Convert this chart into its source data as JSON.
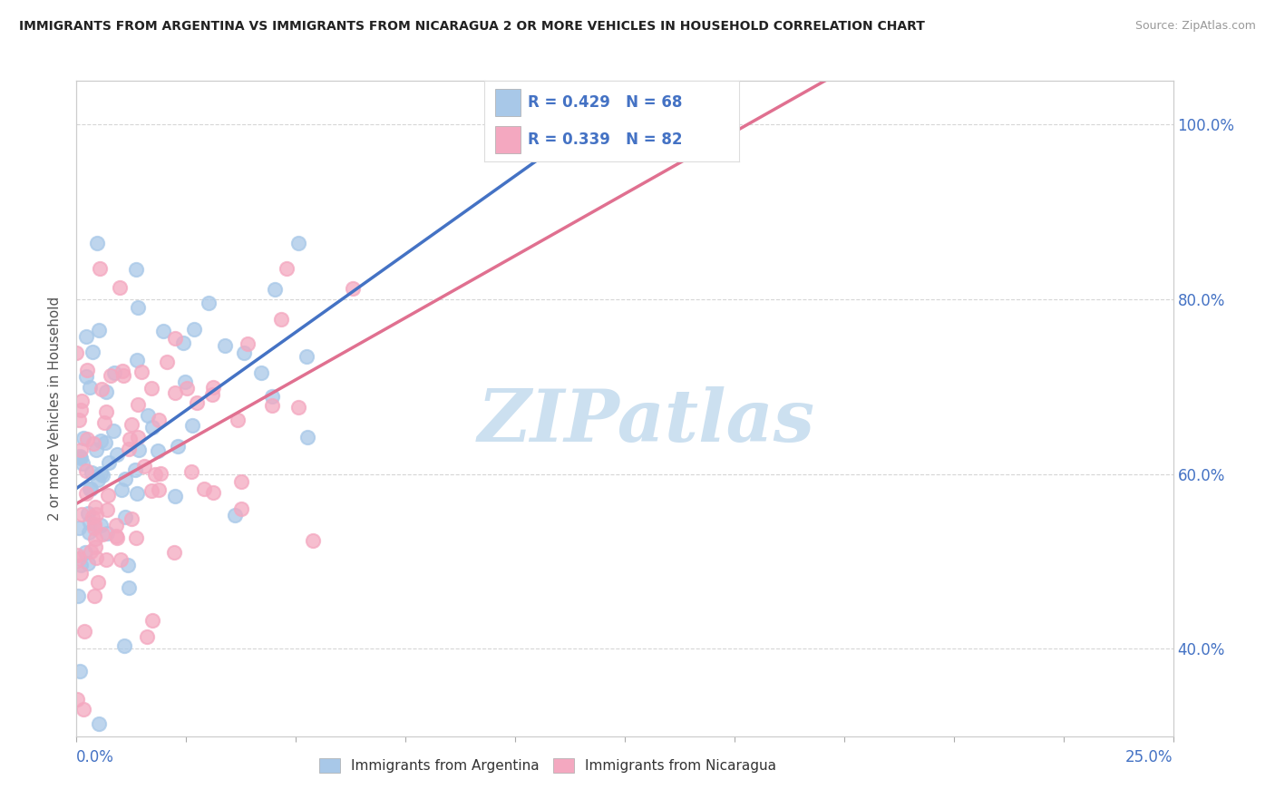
{
  "title": "IMMIGRANTS FROM ARGENTINA VS IMMIGRANTS FROM NICARAGUA 2 OR MORE VEHICLES IN HOUSEHOLD CORRELATION CHART",
  "source": "Source: ZipAtlas.com",
  "ylabel": "2 or more Vehicles in Household",
  "yaxis_labels": [
    "40.0%",
    "60.0%",
    "80.0%",
    "100.0%"
  ],
  "legend_argentina": "R = 0.429   N = 68",
  "legend_nicaragua": "R = 0.339   N = 82",
  "legend_label_argentina": "Immigrants from Argentina",
  "legend_label_nicaragua": "Immigrants from Nicaragua",
  "color_argentina": "#a8c8e8",
  "color_nicaragua": "#f4a8c0",
  "line_color_argentina": "#4472c4",
  "line_color_nicaragua": "#e07090",
  "background_color": "#ffffff",
  "xlim": [
    0,
    25
  ],
  "ylim": [
    30,
    105
  ],
  "yticks": [
    40,
    60,
    80,
    100
  ],
  "watermark_text": "ZIPatlas",
  "watermark_color": "#cce0f0",
  "R_argentina": 0.429,
  "N_argentina": 68,
  "R_nicaragua": 0.339,
  "N_nicaragua": 82
}
